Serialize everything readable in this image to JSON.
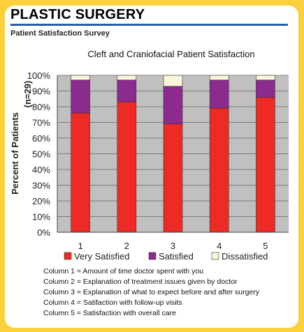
{
  "header": {
    "title": "PLASTIC SURGERY",
    "subtitle": "Patient Satisfaction Survey"
  },
  "colors": {
    "very_satisfied": "#ee2a24",
    "satisfied": "#8b2b8e",
    "dissatisfied": "#fbf6d8",
    "plot_bg": "#c0c0c0",
    "rule": "#2160a5",
    "page_bg": "#fcd03a"
  },
  "chart_data": {
    "type": "bar",
    "stacked": true,
    "title": "Cleft and Craniofacial Patient Satisfaction",
    "xlabel": "",
    "ylabel": "Percent of Patients",
    "ylabel_note": "(n=29)",
    "ylim": [
      0,
      100
    ],
    "yticks": [
      "0%",
      "10%",
      "20%",
      "30%",
      "40%",
      "50%",
      "60%",
      "70%",
      "80%",
      "90%",
      "100%"
    ],
    "grid": true,
    "legend_position": "bottom",
    "categories": [
      "1",
      "2",
      "3",
      "4",
      "5"
    ],
    "series": [
      {
        "name": "Very Satisfied",
        "values": [
          76,
          83,
          69,
          79,
          86
        ]
      },
      {
        "name": "Satisfied",
        "values": [
          21,
          14,
          24,
          18,
          11
        ]
      },
      {
        "name": "Dissatisfied",
        "values": [
          3,
          3,
          7,
          3,
          3
        ]
      }
    ]
  },
  "notes": [
    "Column 1 = Amount of time doctor spent with you",
    "Column 2 = Explanation of treatment issues given by doctor",
    "Column 3 = Explanation of what to expect before and after surgery",
    "Column 4 = Satifaction with follow-up visits",
    "Column 5 = Satisfaction with overall care"
  ]
}
